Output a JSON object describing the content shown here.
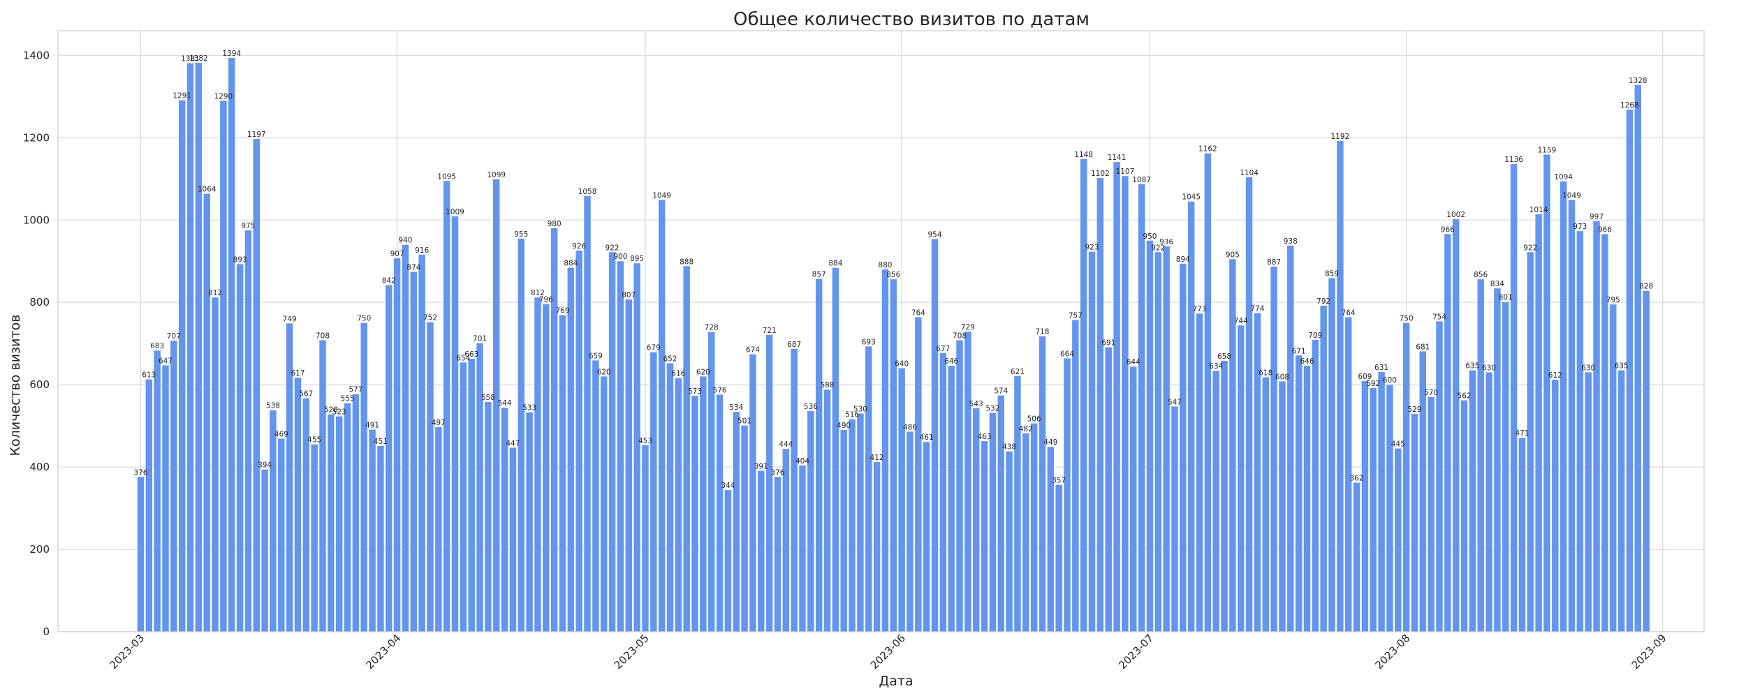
{
  "chart_data": {
    "type": "bar",
    "title": "Общее количество визитов по датам",
    "xlabel": "Дата",
    "ylabel": "Количество визитов",
    "ylim": [
      0,
      1460
    ],
    "yticks": [
      0,
      200,
      400,
      600,
      800,
      1000,
      1200,
      1400
    ],
    "xlim": [
      "2023-02-19",
      "2023-09-06"
    ],
    "xticks": [
      "2023-03",
      "2023-04",
      "2023-05",
      "2023-06",
      "2023-07",
      "2023-08",
      "2023-09"
    ],
    "grid": true,
    "bar_color": "#6495ed",
    "start_date": "2023-03-01",
    "values": [
      376,
      613,
      683,
      647,
      707,
      1291,
      1381,
      1382,
      1064,
      812,
      1290,
      1394,
      893,
      975,
      1197,
      394,
      538,
      469,
      749,
      617,
      567,
      455,
      708,
      528,
      523,
      555,
      577,
      750,
      491,
      451,
      842,
      907,
      940,
      874,
      916,
      752,
      497,
      1095,
      1009,
      654,
      663,
      701,
      558,
      1099,
      544,
      447,
      955,
      533,
      812,
      796,
      980,
      769,
      884,
      926,
      1058,
      659,
      620,
      922,
      900,
      807,
      895,
      453,
      679,
      1049,
      652,
      616,
      888,
      573,
      620,
      728,
      576,
      344,
      534,
      501,
      674,
      391,
      721,
      376,
      444,
      687,
      404,
      536,
      857,
      588,
      884,
      490,
      516,
      530,
      693,
      412,
      880,
      856,
      640,
      486,
      764,
      461,
      954,
      677,
      646,
      708,
      729,
      543,
      463,
      532,
      574,
      438,
      621,
      482,
      506,
      718,
      449,
      357,
      664,
      757,
      1148,
      923,
      1102,
      691,
      1141,
      1107,
      644,
      1087,
      950,
      922,
      936,
      547,
      894,
      1045,
      773,
      1162,
      634,
      658,
      905,
      744,
      1104,
      774,
      618,
      887,
      608,
      938,
      671,
      646,
      709,
      792,
      859,
      1192,
      764,
      362,
      609,
      592,
      631,
      600,
      445,
      750,
      529,
      681,
      570,
      754,
      966,
      1002,
      562,
      635,
      856,
      630,
      834,
      801,
      1136,
      471,
      922,
      1014,
      1159,
      612,
      1094,
      1049,
      973,
      630,
      997,
      966,
      795,
      635,
      1268,
      1328,
      828
    ]
  }
}
